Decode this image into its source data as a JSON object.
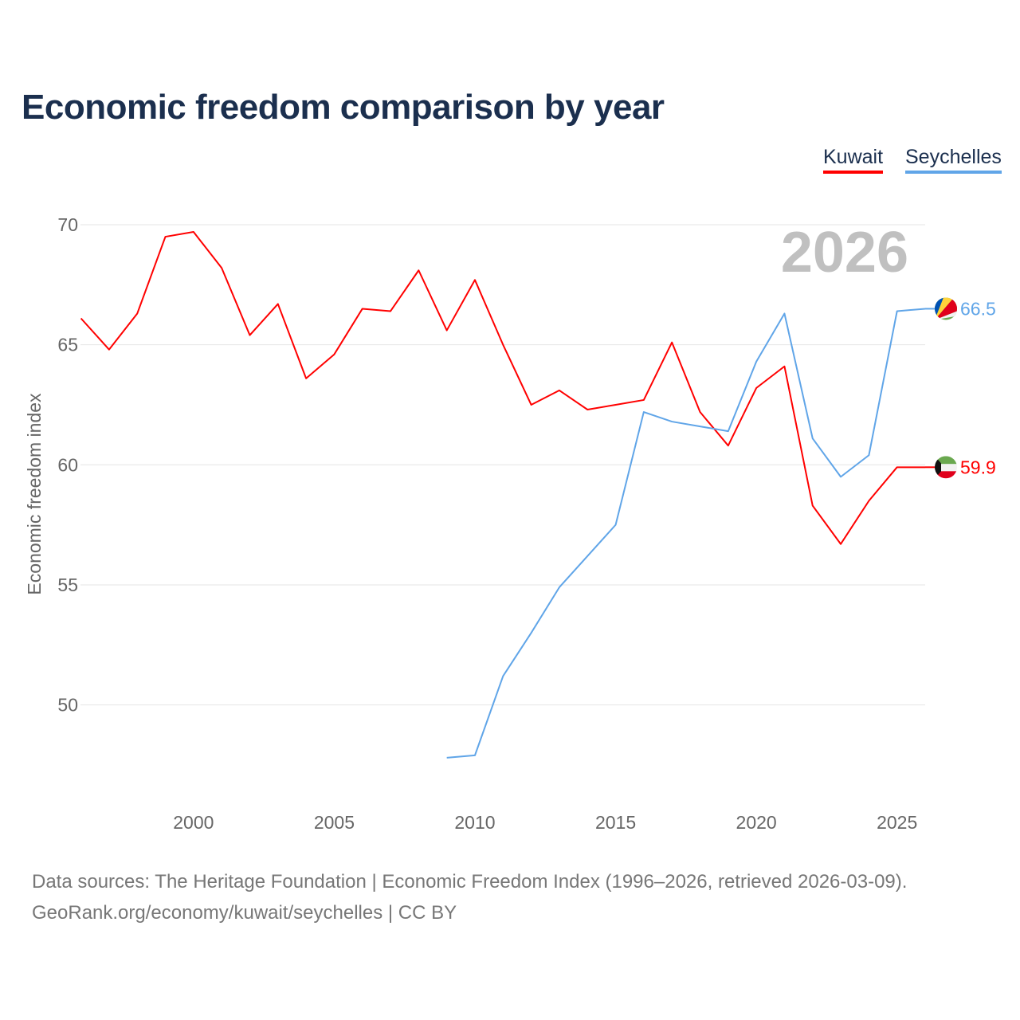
{
  "chart_data": {
    "type": "line",
    "title": "Economic freedom comparison by year",
    "xlabel": "",
    "ylabel": "Economic freedom index",
    "year_label": "2026",
    "xlim": [
      1996,
      2026
    ],
    "ylim": [
      46,
      71
    ],
    "yticks": [
      50,
      55,
      60,
      65,
      70
    ],
    "xticks": [
      2000,
      2005,
      2010,
      2015,
      2020,
      2025
    ],
    "grid": true,
    "legend_placement": "top-right",
    "series": [
      {
        "name": "Kuwait",
        "color": "#ff0000",
        "end_label": "59.9",
        "flag": "kuwait-flag",
        "x": [
          1996,
          1997,
          1998,
          1999,
          2000,
          2001,
          2002,
          2003,
          2004,
          2005,
          2006,
          2007,
          2008,
          2009,
          2010,
          2011,
          2012,
          2013,
          2014,
          2015,
          2016,
          2017,
          2018,
          2019,
          2020,
          2021,
          2022,
          2023,
          2024,
          2025,
          2026
        ],
        "values": [
          66.1,
          64.8,
          66.3,
          69.5,
          69.7,
          68.2,
          65.4,
          66.7,
          63.6,
          64.6,
          66.5,
          66.4,
          68.1,
          65.6,
          67.7,
          65.0,
          62.5,
          63.1,
          62.3,
          62.5,
          62.7,
          65.1,
          62.2,
          60.8,
          63.2,
          64.1,
          58.3,
          56.7,
          58.5,
          59.9,
          59.9
        ]
      },
      {
        "name": "Seychelles",
        "color": "#60a5e8",
        "end_label": "66.5",
        "flag": "seychelles-flag",
        "x": [
          2009,
          2010,
          2011,
          2012,
          2013,
          2014,
          2015,
          2016,
          2017,
          2018,
          2019,
          2020,
          2021,
          2022,
          2023,
          2024,
          2025,
          2026
        ],
        "values": [
          47.8,
          47.9,
          51.2,
          53.0,
          54.9,
          56.2,
          57.5,
          62.2,
          61.8,
          61.6,
          61.4,
          64.3,
          66.3,
          61.1,
          59.5,
          60.4,
          66.4,
          66.5
        ]
      }
    ]
  },
  "footer": {
    "line1": "Data sources: The Heritage Foundation | Economic Freedom Index (1996–2026, retrieved 2026-03-09).",
    "line2": "GeoRank.org/economy/kuwait/seychelles | CC BY"
  }
}
